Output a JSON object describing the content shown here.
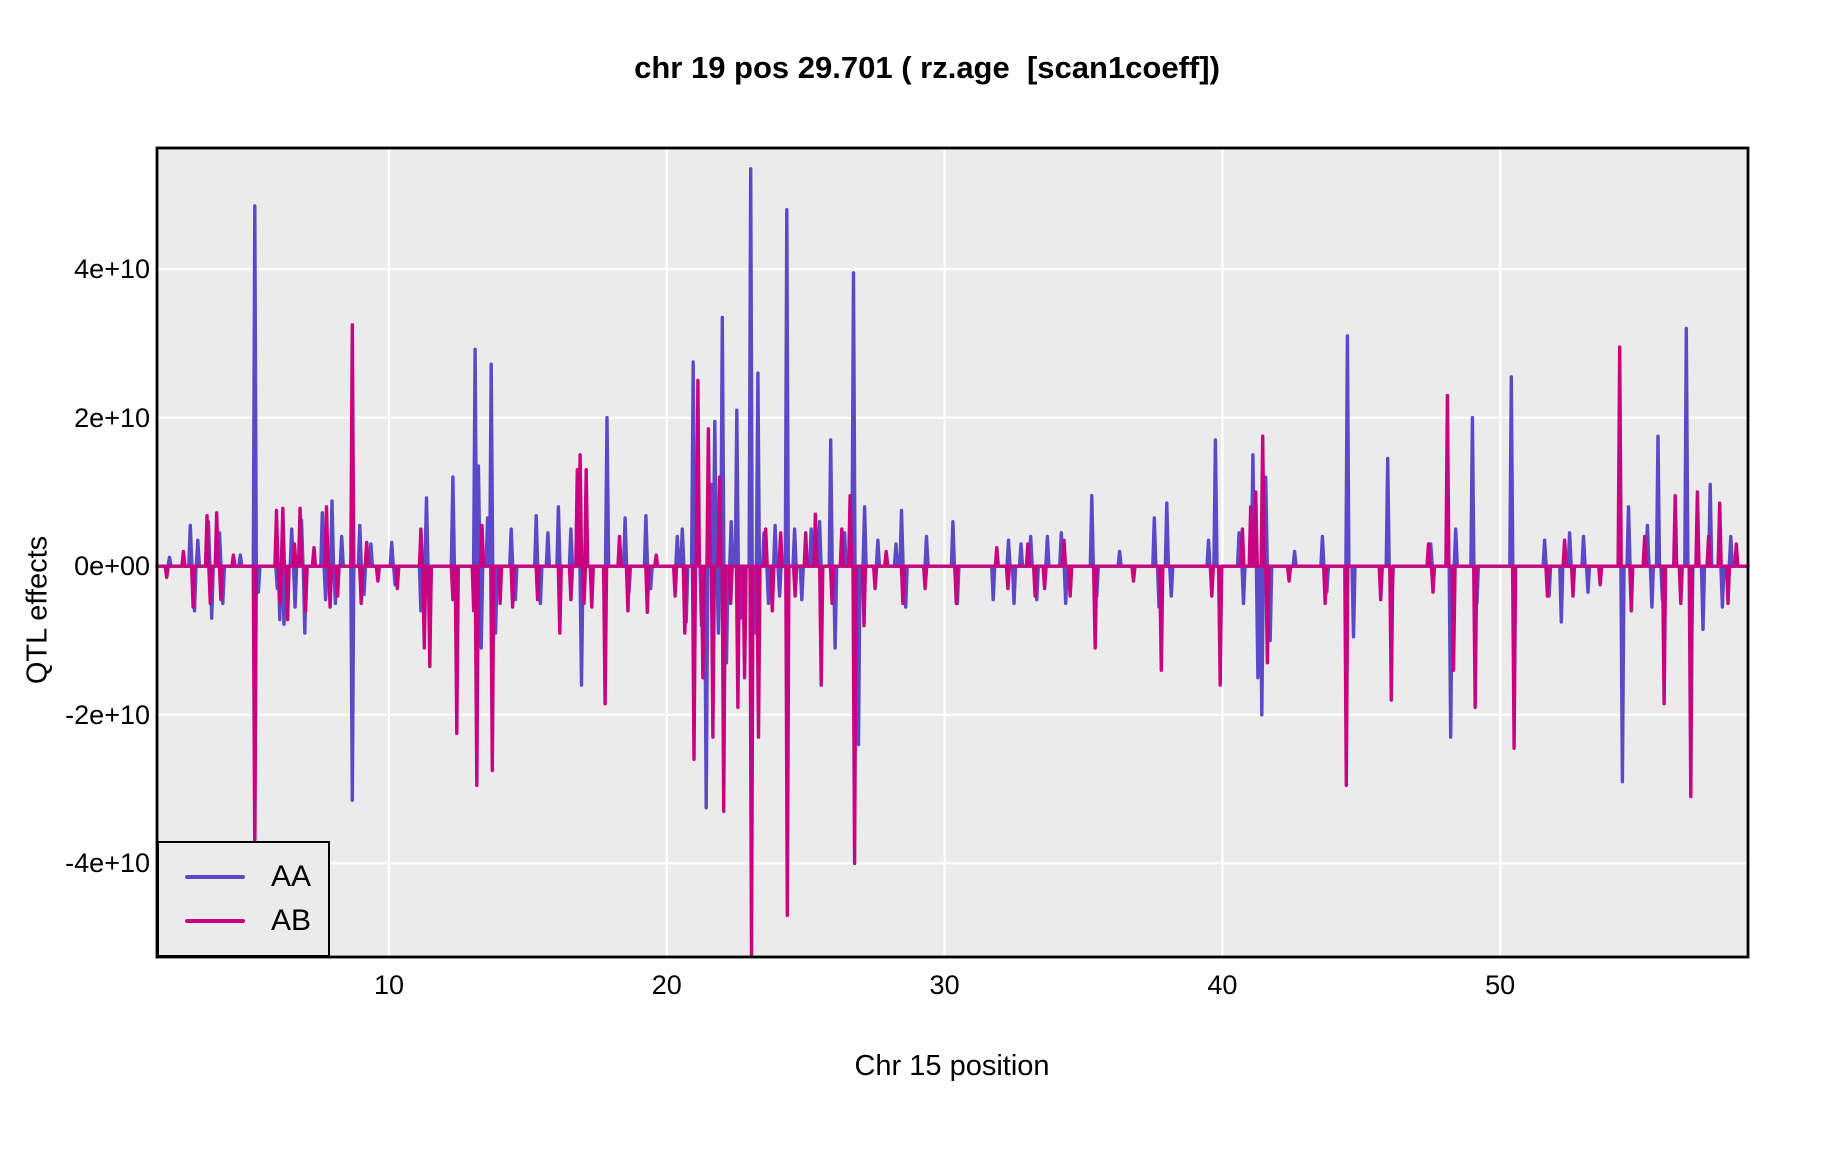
{
  "chart_data": {
    "type": "line",
    "title": "chr 19 pos 29.701 ( rz.age  [scan1coeff])",
    "xlabel": "Chr 15 position",
    "ylabel": "QTL effects",
    "xlim": [
      1.65,
      58.92
    ],
    "ylim_1e10": [
      -5.26,
      5.63
    ],
    "x_ticks": [
      10,
      20,
      30,
      40,
      50
    ],
    "y_ticks": [
      {
        "v": 4,
        "label": "4e+10"
      },
      {
        "v": 2,
        "label": "2e+10"
      },
      {
        "v": 0,
        "label": "0e+00"
      },
      {
        "v": -2,
        "label": "-2e+10"
      },
      {
        "v": -4,
        "label": "-4e+10"
      }
    ],
    "grid": "major gridlines only, white on grey panel",
    "legend_position": "bottom-left inside panel",
    "colors": {
      "AA": "#5B49C8",
      "AB": "#C80480",
      "panel_bg": "#EBEBEB",
      "grid": "#FFFFFF",
      "panel_border": "#000000"
    },
    "value_units": "spike values are QTL effects in units of 1e10; traces sit on a zero baseline",
    "series": [
      {
        "name": "AA",
        "color_key": "AA",
        "spikes_pos_value_1e10": [
          [
            2.1,
            0.12
          ],
          [
            2.85,
            0.55
          ],
          [
            3.0,
            -0.6
          ],
          [
            3.12,
            0.35
          ],
          [
            3.5,
            0.6
          ],
          [
            3.62,
            -0.7
          ],
          [
            3.9,
            0.45
          ],
          [
            4.02,
            -0.5
          ],
          [
            4.65,
            0.15
          ],
          [
            5.17,
            4.85
          ],
          [
            5.3,
            -0.35
          ],
          [
            5.98,
            -0.3
          ],
          [
            6.07,
            -0.72
          ],
          [
            6.22,
            -0.78
          ],
          [
            6.5,
            0.5
          ],
          [
            6.62,
            -0.55
          ],
          [
            6.85,
            0.62
          ],
          [
            6.97,
            -0.9
          ],
          [
            7.6,
            0.72
          ],
          [
            7.72,
            -0.45
          ],
          [
            7.95,
            0.88
          ],
          [
            8.07,
            -0.5
          ],
          [
            8.3,
            0.4
          ],
          [
            8.68,
            -3.15
          ],
          [
            8.95,
            0.55
          ],
          [
            9.1,
            -0.38
          ],
          [
            9.35,
            0.3
          ],
          [
            10.1,
            0.32
          ],
          [
            10.22,
            -0.25
          ],
          [
            11.15,
            -0.6
          ],
          [
            11.35,
            0.92
          ],
          [
            11.47,
            -0.85
          ],
          [
            12.3,
            1.2
          ],
          [
            12.42,
            -0.55
          ],
          [
            13.1,
            2.92
          ],
          [
            13.22,
            1.35
          ],
          [
            13.32,
            -1.1
          ],
          [
            13.55,
            0.65
          ],
          [
            13.68,
            2.72
          ],
          [
            13.84,
            -0.9
          ],
          [
            14.4,
            0.5
          ],
          [
            14.55,
            -0.45
          ],
          [
            15.3,
            0.68
          ],
          [
            15.45,
            -0.5
          ],
          [
            15.72,
            0.45
          ],
          [
            16.1,
            0.8
          ],
          [
            16.55,
            0.5
          ],
          [
            16.93,
            -1.6
          ],
          [
            17.85,
            2.0
          ],
          [
            18.5,
            0.65
          ],
          [
            18.64,
            -0.35
          ],
          [
            19.25,
            0.68
          ],
          [
            19.42,
            -0.3
          ],
          [
            20.38,
            0.4
          ],
          [
            20.56,
            0.5
          ],
          [
            20.7,
            -0.75
          ],
          [
            20.95,
            2.75
          ],
          [
            21.1,
            0.9
          ],
          [
            21.25,
            -0.8
          ],
          [
            21.42,
            -3.25
          ],
          [
            21.6,
            1.1
          ],
          [
            21.73,
            1.95
          ],
          [
            21.86,
            -0.9
          ],
          [
            22.0,
            3.35
          ],
          [
            22.15,
            -1.3
          ],
          [
            22.32,
            0.6
          ],
          [
            22.52,
            2.1
          ],
          [
            22.66,
            -0.7
          ],
          [
            23.02,
            5.35
          ],
          [
            23.16,
            -0.9
          ],
          [
            23.28,
            2.6
          ],
          [
            23.5,
            0.45
          ],
          [
            23.66,
            -0.5
          ],
          [
            23.9,
            0.55
          ],
          [
            24.06,
            -0.4
          ],
          [
            24.32,
            4.8
          ],
          [
            24.6,
            0.5
          ],
          [
            24.86,
            -0.45
          ],
          [
            25.2,
            0.5
          ],
          [
            25.5,
            0.6
          ],
          [
            25.9,
            1.7
          ],
          [
            26.06,
            -1.1
          ],
          [
            26.4,
            0.45
          ],
          [
            26.72,
            3.95
          ],
          [
            26.9,
            -2.4
          ],
          [
            27.12,
            0.8
          ],
          [
            27.6,
            0.35
          ],
          [
            28.25,
            0.3
          ],
          [
            28.45,
            0.75
          ],
          [
            28.6,
            -0.55
          ],
          [
            29.35,
            0.4
          ],
          [
            30.3,
            0.6
          ],
          [
            30.46,
            -0.5
          ],
          [
            31.75,
            -0.45
          ],
          [
            32.3,
            0.35
          ],
          [
            32.5,
            -0.5
          ],
          [
            32.75,
            0.3
          ],
          [
            33.1,
            0.4
          ],
          [
            33.32,
            -0.45
          ],
          [
            33.7,
            0.4
          ],
          [
            34.2,
            0.45
          ],
          [
            34.36,
            -0.5
          ],
          [
            35.3,
            0.95
          ],
          [
            35.48,
            -0.4
          ],
          [
            36.3,
            0.2
          ],
          [
            37.55,
            0.65
          ],
          [
            37.72,
            -0.55
          ],
          [
            38.0,
            0.85
          ],
          [
            38.16,
            -0.4
          ],
          [
            39.5,
            0.35
          ],
          [
            39.75,
            1.7
          ],
          [
            39.92,
            -0.5
          ],
          [
            40.6,
            0.45
          ],
          [
            40.76,
            -0.5
          ],
          [
            41.1,
            1.5
          ],
          [
            41.28,
            -1.5
          ],
          [
            41.42,
            -2.0
          ],
          [
            41.56,
            1.2
          ],
          [
            41.72,
            -1.0
          ],
          [
            42.6,
            0.2
          ],
          [
            43.6,
            0.4
          ],
          [
            43.76,
            -0.35
          ],
          [
            44.5,
            3.1
          ],
          [
            44.72,
            -0.95
          ],
          [
            45.95,
            1.45
          ],
          [
            46.1,
            -0.4
          ],
          [
            47.5,
            0.3
          ],
          [
            48.22,
            -2.3
          ],
          [
            48.4,
            0.5
          ],
          [
            49.0,
            2.0
          ],
          [
            49.16,
            -0.5
          ],
          [
            50.4,
            2.55
          ],
          [
            51.6,
            0.35
          ],
          [
            51.76,
            -0.4
          ],
          [
            52.2,
            -0.75
          ],
          [
            52.5,
            0.45
          ],
          [
            53.0,
            0.4
          ],
          [
            53.16,
            -0.35
          ],
          [
            54.4,
            -2.9
          ],
          [
            54.62,
            0.8
          ],
          [
            55.3,
            0.55
          ],
          [
            55.46,
            -0.55
          ],
          [
            55.68,
            1.75
          ],
          [
            55.84,
            -0.45
          ],
          [
            56.7,
            3.2
          ],
          [
            56.88,
            -1.35
          ],
          [
            57.3,
            -0.85
          ],
          [
            57.56,
            1.1
          ],
          [
            58.0,
            -0.55
          ],
          [
            58.3,
            0.4
          ]
        ]
      },
      {
        "name": "AB",
        "color_key": "AB",
        "spikes_pos_value_1e10": [
          [
            2.0,
            -0.15
          ],
          [
            2.6,
            0.2
          ],
          [
            2.95,
            -0.55
          ],
          [
            3.45,
            0.68
          ],
          [
            3.57,
            -0.5
          ],
          [
            3.8,
            0.72
          ],
          [
            3.95,
            -0.45
          ],
          [
            4.4,
            0.15
          ],
          [
            5.17,
            -3.9
          ],
          [
            5.95,
            0.75
          ],
          [
            6.08,
            -0.5
          ],
          [
            6.18,
            0.78
          ],
          [
            6.35,
            -0.72
          ],
          [
            6.6,
            0.3
          ],
          [
            6.8,
            0.78
          ],
          [
            7.0,
            -0.6
          ],
          [
            7.3,
            0.25
          ],
          [
            7.75,
            0.8
          ],
          [
            7.88,
            -0.55
          ],
          [
            8.15,
            -0.4
          ],
          [
            8.68,
            3.25
          ],
          [
            9.0,
            -0.5
          ],
          [
            9.2,
            0.32
          ],
          [
            9.6,
            -0.2
          ],
          [
            10.3,
            -0.3
          ],
          [
            11.15,
            0.5
          ],
          [
            11.27,
            -1.1
          ],
          [
            11.47,
            -1.35
          ],
          [
            12.3,
            -0.45
          ],
          [
            12.44,
            -2.25
          ],
          [
            13.05,
            -0.6
          ],
          [
            13.16,
            -2.95
          ],
          [
            13.35,
            0.55
          ],
          [
            13.72,
            -2.75
          ],
          [
            14.0,
            -0.5
          ],
          [
            14.45,
            -0.55
          ],
          [
            15.35,
            -0.45
          ],
          [
            16.15,
            -0.9
          ],
          [
            16.55,
            -0.45
          ],
          [
            16.78,
            1.3
          ],
          [
            16.88,
            1.5
          ],
          [
            17.02,
            -0.5
          ],
          [
            17.1,
            1.3
          ],
          [
            17.3,
            -0.55
          ],
          [
            17.78,
            -1.85
          ],
          [
            18.3,
            0.4
          ],
          [
            18.6,
            -0.6
          ],
          [
            19.3,
            -0.62
          ],
          [
            19.62,
            0.15
          ],
          [
            20.3,
            -0.4
          ],
          [
            20.65,
            -0.9
          ],
          [
            20.98,
            -2.6
          ],
          [
            21.12,
            2.5
          ],
          [
            21.3,
            -1.5
          ],
          [
            21.5,
            1.85
          ],
          [
            21.66,
            -2.3
          ],
          [
            21.9,
            1.2
          ],
          [
            22.05,
            -3.3
          ],
          [
            22.3,
            -0.5
          ],
          [
            22.56,
            -1.9
          ],
          [
            22.8,
            -1.5
          ],
          [
            23.05,
            -5.25
          ],
          [
            23.3,
            -2.3
          ],
          [
            23.56,
            0.5
          ],
          [
            23.8,
            -0.6
          ],
          [
            24.1,
            0.45
          ],
          [
            24.34,
            -4.7
          ],
          [
            24.62,
            -0.4
          ],
          [
            25.0,
            0.45
          ],
          [
            25.35,
            0.7
          ],
          [
            25.56,
            -1.6
          ],
          [
            25.95,
            -0.5
          ],
          [
            26.3,
            0.5
          ],
          [
            26.6,
            0.95
          ],
          [
            26.76,
            -4.0
          ],
          [
            27.1,
            -0.8
          ],
          [
            27.5,
            -0.3
          ],
          [
            27.9,
            0.2
          ],
          [
            28.5,
            -0.5
          ],
          [
            29.3,
            -0.3
          ],
          [
            30.42,
            -0.5
          ],
          [
            31.88,
            0.25
          ],
          [
            32.28,
            -0.3
          ],
          [
            33.0,
            0.3
          ],
          [
            33.26,
            -0.4
          ],
          [
            33.6,
            -0.3
          ],
          [
            34.3,
            0.35
          ],
          [
            34.52,
            -0.4
          ],
          [
            35.42,
            -1.1
          ],
          [
            36.8,
            -0.2
          ],
          [
            37.8,
            -1.4
          ],
          [
            39.62,
            -0.4
          ],
          [
            39.92,
            -1.6
          ],
          [
            40.72,
            0.5
          ],
          [
            41.02,
            0.8
          ],
          [
            41.2,
            1.0
          ],
          [
            41.45,
            1.75
          ],
          [
            41.62,
            -1.3
          ],
          [
            42.4,
            -0.2
          ],
          [
            43.7,
            -0.5
          ],
          [
            44.46,
            -2.95
          ],
          [
            45.7,
            -0.45
          ],
          [
            46.08,
            -1.8
          ],
          [
            47.42,
            0.3
          ],
          [
            47.58,
            -0.35
          ],
          [
            48.1,
            2.3
          ],
          [
            48.32,
            -1.4
          ],
          [
            49.1,
            -1.9
          ],
          [
            50.5,
            -2.45
          ],
          [
            51.7,
            -0.4
          ],
          [
            52.32,
            0.35
          ],
          [
            52.62,
            -0.4
          ],
          [
            53.6,
            -0.25
          ],
          [
            54.3,
            2.95
          ],
          [
            54.72,
            -0.6
          ],
          [
            55.2,
            0.4
          ],
          [
            55.9,
            -1.85
          ],
          [
            56.3,
            0.95
          ],
          [
            56.5,
            -0.5
          ],
          [
            56.86,
            -3.1
          ],
          [
            57.1,
            1.0
          ],
          [
            57.5,
            0.4
          ],
          [
            57.9,
            0.85
          ],
          [
            58.2,
            -0.5
          ],
          [
            58.5,
            0.3
          ]
        ]
      }
    ]
  },
  "legend": {
    "items": [
      {
        "label": "AA"
      },
      {
        "label": "AB"
      }
    ]
  }
}
